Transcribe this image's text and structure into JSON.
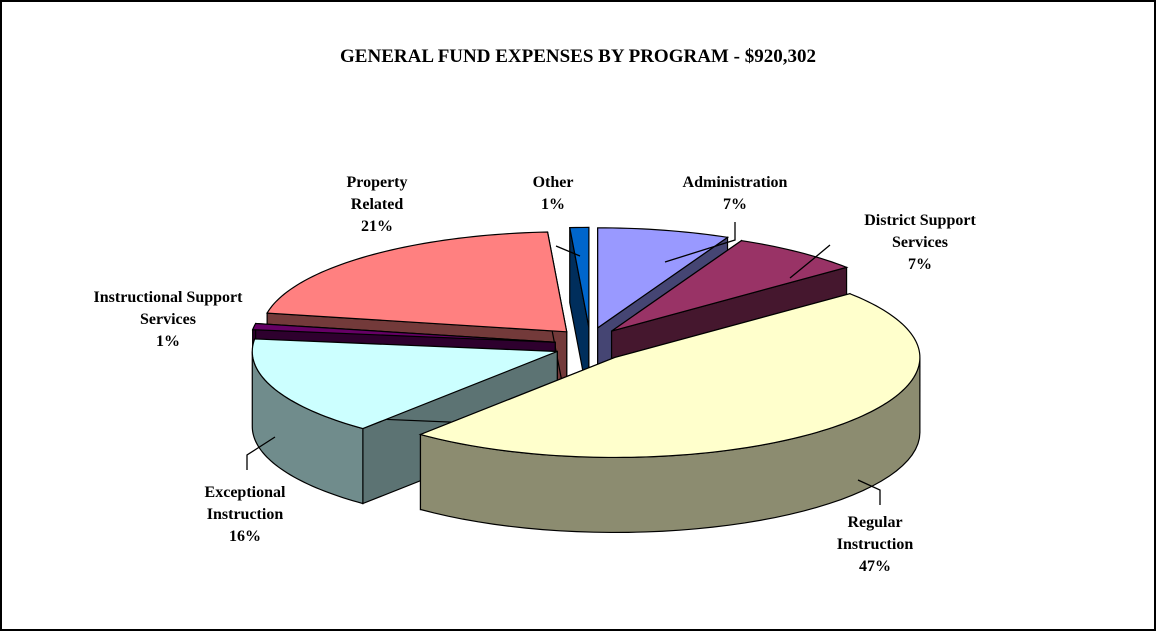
{
  "chart_data": {
    "type": "pie",
    "title": "GENERAL FUND EXPENSES BY PROGRAM - $920,302",
    "categories": [
      "Administration",
      "District Support Services",
      "Regular Instruction",
      "Exceptional Instruction",
      "Instructional Support Services",
      "Property Related",
      "Other"
    ],
    "values": [
      7,
      7,
      47,
      16,
      1,
      21,
      1
    ],
    "value_labels": [
      "7%",
      "7%",
      "47%",
      "16%",
      "1%",
      "21%",
      "1%"
    ],
    "colors": [
      "#9999ff",
      "#993366",
      "#ffffcc",
      "#ccffff",
      "#660066",
      "#ff8080",
      "#0066cc"
    ]
  }
}
